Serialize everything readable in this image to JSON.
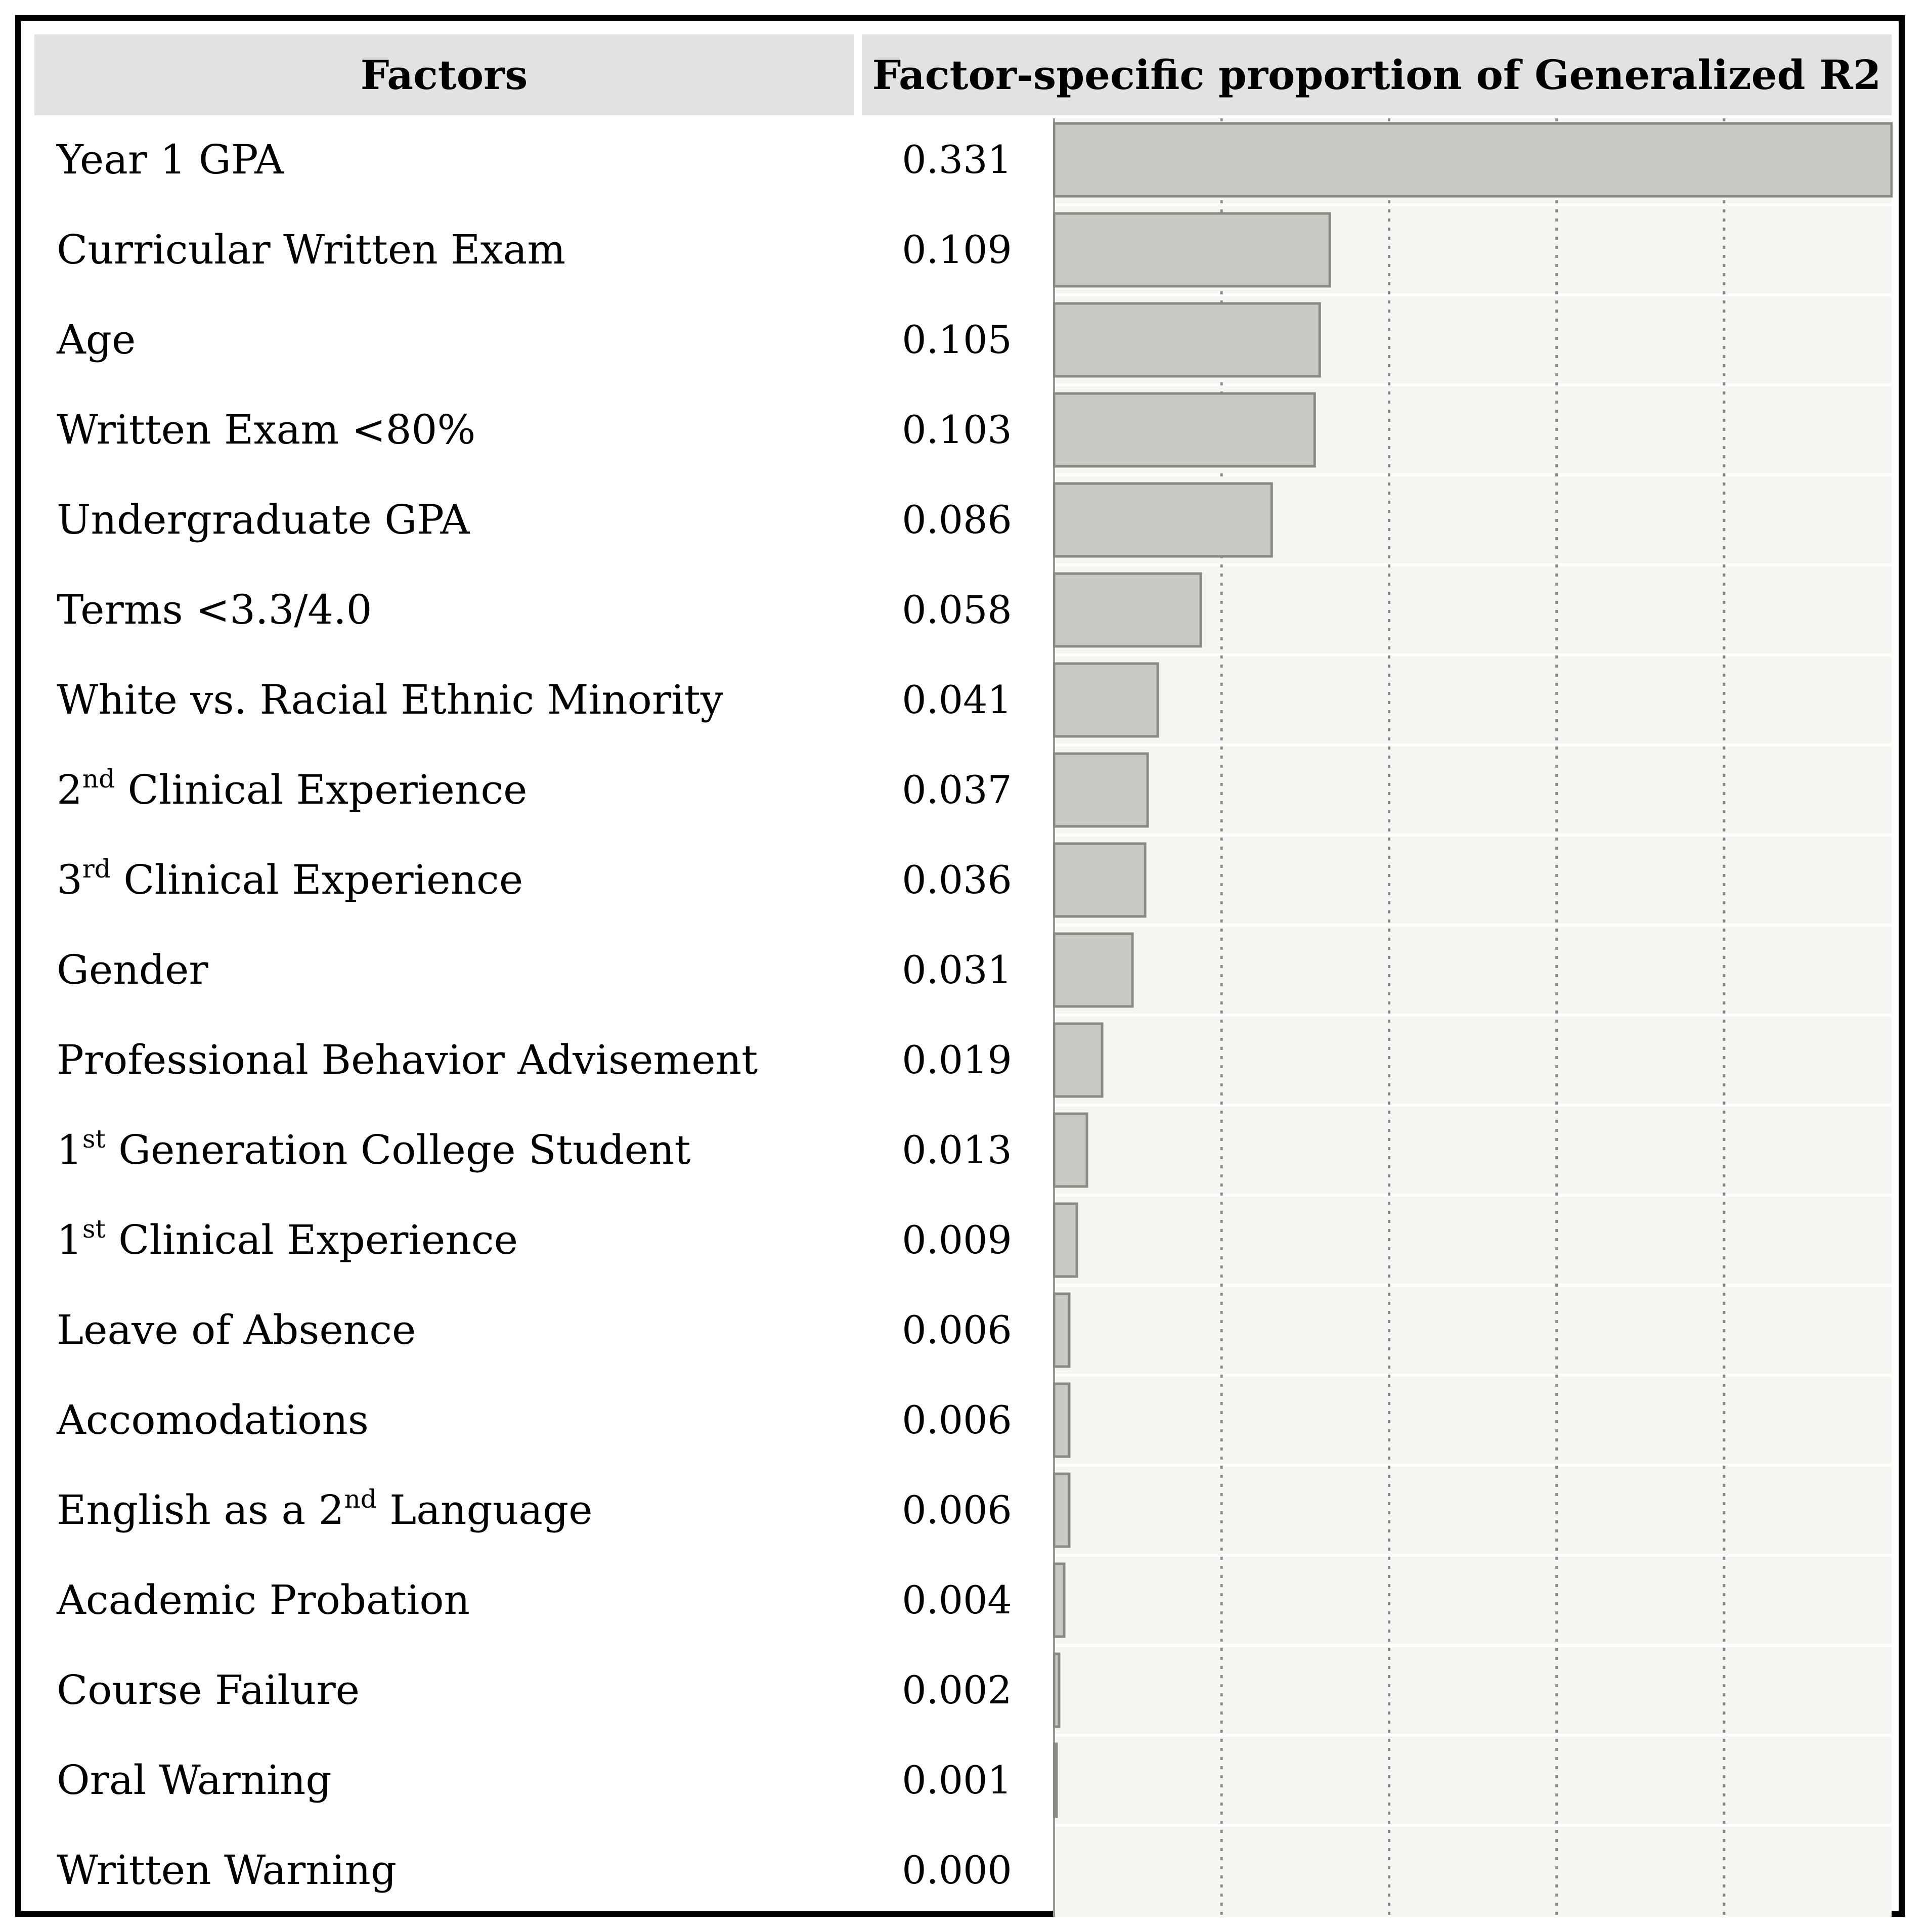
{
  "header": {
    "factors": "Factors",
    "measure": "Factor-specific proportion of Generalized R2"
  },
  "colors": {
    "bar_fill": "#cacac4",
    "bar_stroke": "#8a8a85",
    "plot_background": "#f5f5f2",
    "header_background": "#e2e2e2"
  },
  "chart_data": {
    "type": "bar",
    "orientation": "horizontal",
    "title": "Factor-specific proportion of Generalized R2",
    "xlabel": "",
    "ylabel": "Factors",
    "xlim": [
      0,
      0.331
    ],
    "grid": "dotted vertical",
    "categories": [
      "Year 1 GPA",
      "Curricular Written Exam",
      "Age",
      "Written Exam <80%",
      "Undergraduate GPA",
      "Terms <3.3/4.0",
      "White vs. Racial Ethnic Minority",
      "2nd Clinical Experience",
      "3rd Clinical Experience",
      "Gender",
      "Professional Behavior Advisement",
      "1st Generation College Student",
      "1st Clinical Experience",
      "Leave of Absence",
      "Accomodations",
      "English as a 2nd Language",
      "Academic Probation",
      "Course Failure",
      "Oral Warning",
      "Written Warning"
    ],
    "values": [
      0.331,
      0.109,
      0.105,
      0.103,
      0.086,
      0.058,
      0.041,
      0.037,
      0.036,
      0.031,
      0.019,
      0.013,
      0.009,
      0.006,
      0.006,
      0.006,
      0.004,
      0.002,
      0.001,
      0.0
    ],
    "value_labels": [
      "0.331",
      "0.109",
      "0.105",
      "0.103",
      "0.086",
      "0.058",
      "0.041",
      "0.037",
      "0.036",
      "0.031",
      "0.019",
      "0.013",
      "0.009",
      "0.006",
      "0.006",
      "0.006",
      "0.004",
      "0.002",
      "0.001",
      "0.000"
    ]
  },
  "rows": [
    {
      "pre": "Year 1 GPA",
      "sup": "",
      "post": ""
    },
    {
      "pre": "Curricular Written Exam",
      "sup": "",
      "post": ""
    },
    {
      "pre": "Age",
      "sup": "",
      "post": ""
    },
    {
      "pre": "Written Exam <80%",
      "sup": "",
      "post": ""
    },
    {
      "pre": "Undergraduate GPA",
      "sup": "",
      "post": ""
    },
    {
      "pre": "Terms <3.3/4.0",
      "sup": "",
      "post": ""
    },
    {
      "pre": "White vs. Racial Ethnic Minority",
      "sup": "",
      "post": ""
    },
    {
      "pre": "2",
      "sup": "nd",
      "post": " Clinical Experience"
    },
    {
      "pre": "3",
      "sup": "rd",
      "post": " Clinical Experience"
    },
    {
      "pre": "Gender",
      "sup": "",
      "post": ""
    },
    {
      "pre": "Professional Behavior Advisement",
      "sup": "",
      "post": ""
    },
    {
      "pre": "1",
      "sup": "st",
      "post": " Generation College Student"
    },
    {
      "pre": "1",
      "sup": "st",
      "post": " Clinical Experience"
    },
    {
      "pre": "Leave of Absence",
      "sup": "",
      "post": ""
    },
    {
      "pre": "Accomodations",
      "sup": "",
      "post": ""
    },
    {
      "pre": "English as a 2",
      "sup": "nd",
      "post": " Language"
    },
    {
      "pre": "Academic Probation",
      "sup": "",
      "post": ""
    },
    {
      "pre": "Course Failure",
      "sup": "",
      "post": ""
    },
    {
      "pre": "Oral Warning",
      "sup": "",
      "post": ""
    },
    {
      "pre": "Written Warning",
      "sup": "",
      "post": ""
    }
  ]
}
